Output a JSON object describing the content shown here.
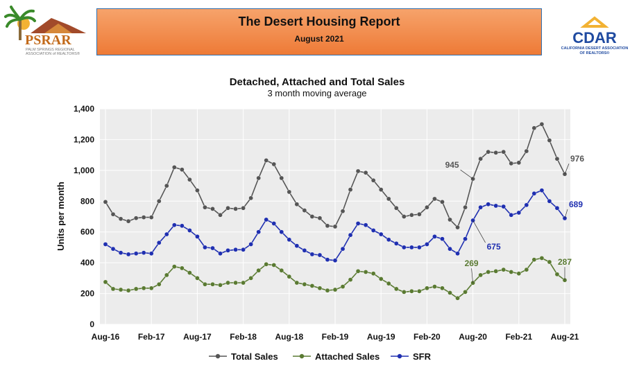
{
  "header": {
    "title": "The Desert Housing Report",
    "subtitle": "August 2021",
    "left_logo": {
      "name": "PSRAR",
      "line1": "PALM SPRINGS REGIONAL",
      "line2": "ASSOCIATION of REALTORS®"
    },
    "right_logo": {
      "name": "CDAR",
      "line1": "CALIFORNIA DESERT ASSOCIATION",
      "line2": "OF REALTORS®"
    }
  },
  "colors": {
    "total": "#555555",
    "attached": "#5a7a32",
    "sfr": "#1f2fb0",
    "plot_bg": "#ececec",
    "banner_start": "#f6a36b",
    "banner_end": "#ee7a36"
  },
  "chart_data": {
    "type": "line",
    "title": "Detached, Attached and Total Sales",
    "subtitle": "3 month moving average",
    "ylabel": "Units per month",
    "ylim": [
      0,
      1400
    ],
    "yticks": [
      0,
      200,
      400,
      600,
      800,
      1000,
      1200,
      1400
    ],
    "ytick_labels": [
      "0",
      "200",
      "400",
      "600",
      "800",
      "1,000",
      "1,200",
      "1,400"
    ],
    "x": [
      "Aug-16",
      "Sep-16",
      "Oct-16",
      "Nov-16",
      "Dec-16",
      "Jan-17",
      "Feb-17",
      "Mar-17",
      "Apr-17",
      "May-17",
      "Jun-17",
      "Jul-17",
      "Aug-17",
      "Sep-17",
      "Oct-17",
      "Nov-17",
      "Dec-17",
      "Jan-18",
      "Feb-18",
      "Mar-18",
      "Apr-18",
      "May-18",
      "Jun-18",
      "Jul-18",
      "Aug-18",
      "Sep-18",
      "Oct-18",
      "Nov-18",
      "Dec-18",
      "Jan-19",
      "Feb-19",
      "Mar-19",
      "Apr-19",
      "May-19",
      "Jun-19",
      "Jul-19",
      "Aug-19",
      "Sep-19",
      "Oct-19",
      "Nov-19",
      "Dec-19",
      "Jan-20",
      "Feb-20",
      "Mar-20",
      "Apr-20",
      "May-20",
      "Jun-20",
      "Jul-20",
      "Aug-20",
      "Sep-20",
      "Oct-20",
      "Nov-20",
      "Dec-20",
      "Jan-21",
      "Feb-21",
      "Mar-21",
      "Apr-21",
      "May-21",
      "Jun-21",
      "Jul-21",
      "Aug-21"
    ],
    "xtick_labels": [
      "Aug-16",
      "Feb-17",
      "Aug-17",
      "Feb-18",
      "Aug-18",
      "Feb-19",
      "Aug-19",
      "Feb-20",
      "Aug-20",
      "Feb-21",
      "Aug-21"
    ],
    "xtick_every": 6,
    "grid": true,
    "legend_position": "bottom",
    "series": [
      {
        "name": "Total Sales",
        "key": "total",
        "values": [
          795,
          715,
          685,
          670,
          690,
          695,
          695,
          800,
          900,
          1020,
          1005,
          940,
          870,
          760,
          750,
          710,
          755,
          750,
          755,
          820,
          950,
          1065,
          1040,
          950,
          860,
          780,
          740,
          700,
          690,
          640,
          635,
          735,
          875,
          995,
          985,
          935,
          875,
          815,
          755,
          700,
          710,
          715,
          760,
          815,
          795,
          680,
          630,
          760,
          945,
          1075,
          1120,
          1115,
          1120,
          1045,
          1050,
          1125,
          1275,
          1300,
          1195,
          1075,
          976
        ]
      },
      {
        "name": "Attached Sales",
        "key": "attached",
        "values": [
          275,
          230,
          225,
          220,
          230,
          235,
          235,
          260,
          320,
          375,
          365,
          335,
          300,
          260,
          260,
          255,
          270,
          270,
          270,
          300,
          350,
          390,
          385,
          350,
          310,
          270,
          260,
          250,
          235,
          220,
          225,
          245,
          290,
          345,
          340,
          330,
          295,
          265,
          230,
          210,
          215,
          215,
          235,
          245,
          235,
          205,
          170,
          210,
          269,
          320,
          340,
          345,
          355,
          340,
          330,
          355,
          420,
          430,
          405,
          325,
          287
        ]
      },
      {
        "name": "SFR",
        "key": "sfr",
        "values": [
          520,
          490,
          465,
          455,
          460,
          465,
          460,
          530,
          585,
          645,
          640,
          610,
          570,
          500,
          495,
          460,
          480,
          485,
          485,
          520,
          600,
          680,
          655,
          600,
          550,
          510,
          480,
          455,
          450,
          420,
          415,
          490,
          580,
          655,
          645,
          610,
          585,
          550,
          525,
          500,
          500,
          500,
          520,
          570,
          555,
          490,
          460,
          555,
          675,
          760,
          780,
          770,
          765,
          710,
          725,
          775,
          850,
          870,
          800,
          755,
          689
        ]
      }
    ],
    "annotations": [
      {
        "series": "total",
        "index": 48,
        "text": "945"
      },
      {
        "series": "total",
        "index": 60,
        "text": "976"
      },
      {
        "series": "sfr",
        "index": 48,
        "text": "675"
      },
      {
        "series": "sfr",
        "index": 60,
        "text": "689"
      },
      {
        "series": "attached",
        "index": 48,
        "text": "269"
      },
      {
        "series": "attached",
        "index": 60,
        "text": "287"
      }
    ]
  }
}
